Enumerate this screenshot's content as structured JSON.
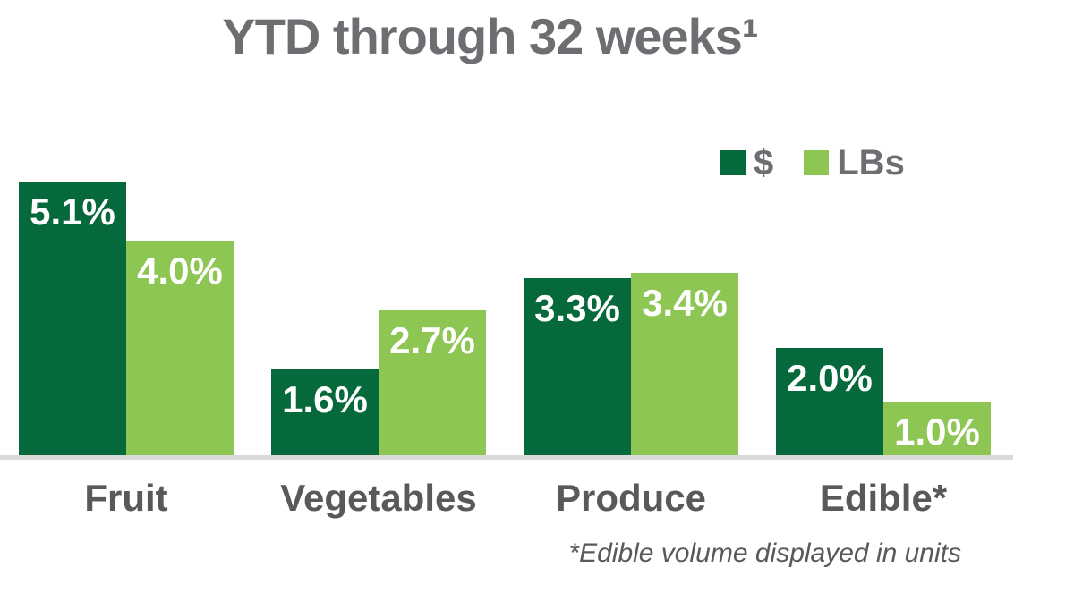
{
  "title": {
    "text": "YTD through 32 weeks¹",
    "color": "#6D6E71"
  },
  "footnote": {
    "text": "*Edible volume displayed in units",
    "color": "#58595B"
  },
  "axis": {
    "line_color": "#D9D9D9"
  },
  "colors": {
    "dollars_green": "#06693B",
    "lbs_green": "#8DC652",
    "title_gray": "#6D6E71",
    "category_gray": "#58595B",
    "value_label_white": "#FFFFFF",
    "axis_line_gray": "#D9D9D9"
  },
  "chart_data": {
    "type": "bar",
    "title": "YTD through 32 weeks¹",
    "categories": [
      "Fruit",
      "Vegetables",
      "Produce",
      "Edible*"
    ],
    "series": [
      {
        "name": "$",
        "color": "#06693B",
        "values": [
          5.1,
          1.6,
          3.3,
          2.0
        ],
        "labels": [
          "5.1%",
          "1.6%",
          "3.3%",
          "2.0%"
        ]
      },
      {
        "name": "LBs",
        "color": "#8DC652",
        "values": [
          4.0,
          2.7,
          3.4,
          1.0
        ],
        "labels": [
          "4.0%",
          "2.7%",
          "3.4%",
          "1.0%"
        ]
      }
    ],
    "unit": "%",
    "ylim": [
      0,
      5.5
    ],
    "grid": false,
    "legend_position": "top-right",
    "value_labels": "inside-top",
    "xlabel": "",
    "ylabel": "",
    "footnote": "*Edible volume displayed in units"
  }
}
